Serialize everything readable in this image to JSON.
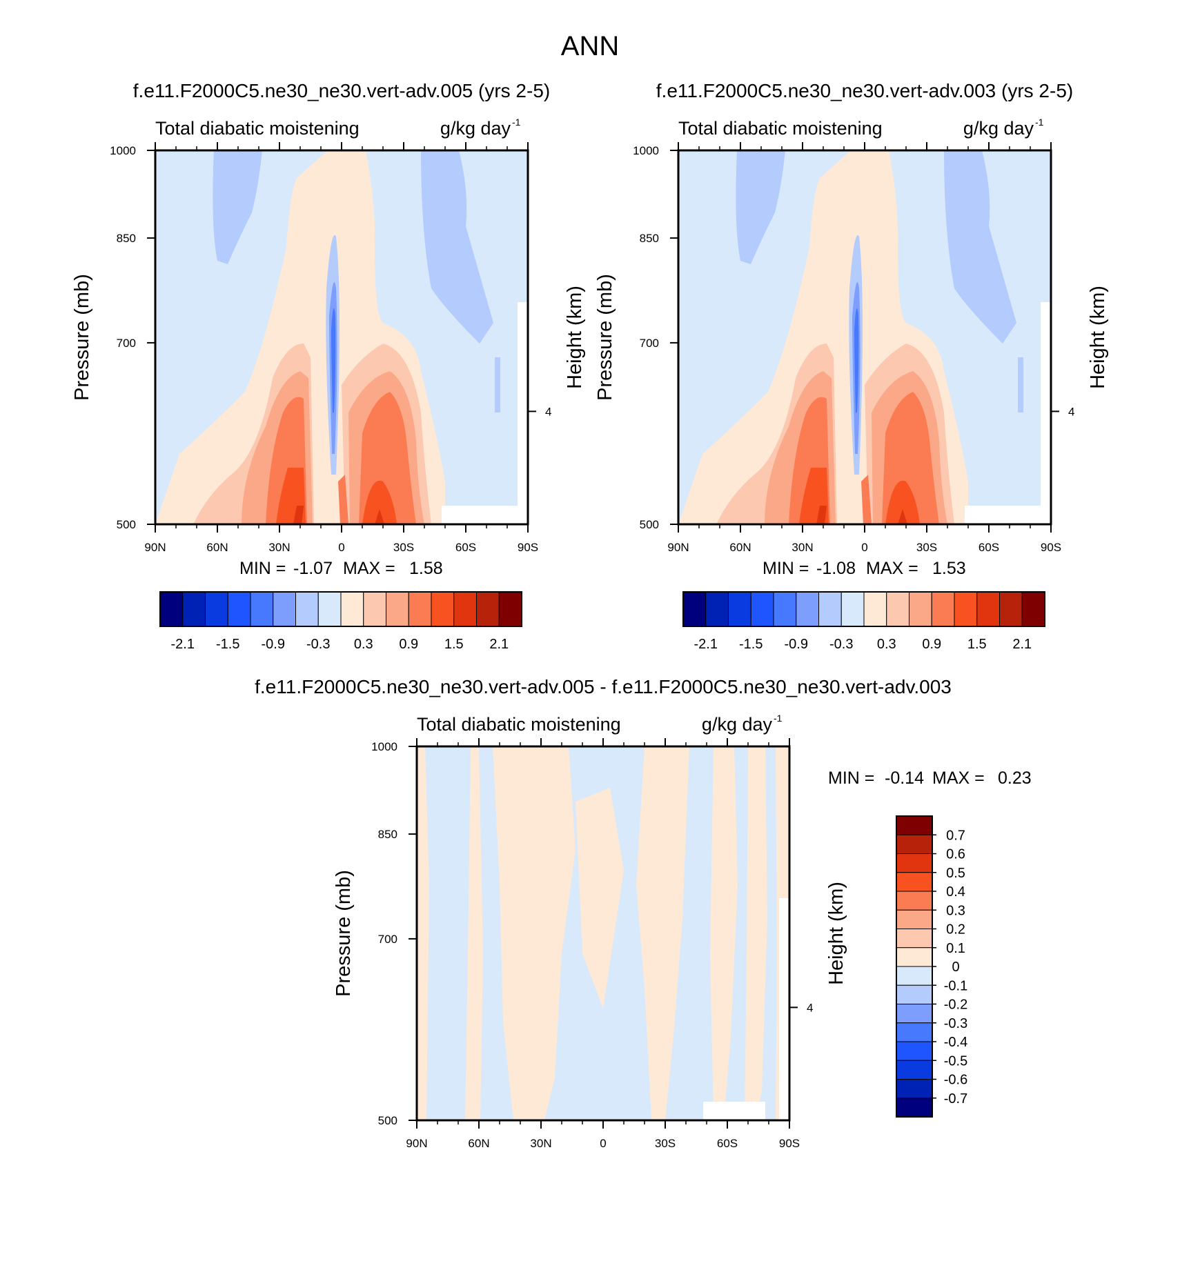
{
  "figure_title": "ANN",
  "chart_data": [
    {
      "type": "heatmap",
      "title": "f.e11.F2000C5.ne30_ne30.vert-adv.005 (yrs 2-5)",
      "subtitle_left": "Total diabatic moistening",
      "units": "g/kg day",
      "units_exp": "-1",
      "ylabel": "Pressure (mb)",
      "ylabel_right": "Height (km)",
      "y_ticks": [
        "500",
        "700",
        "850",
        "1000"
      ],
      "y_right_ticks": [
        "4"
      ],
      "x_ticks": [
        "90N",
        "60N",
        "30N",
        "0",
        "30S",
        "60S",
        "90S"
      ],
      "xlim": [
        90,
        -90
      ],
      "ylim": [
        1000,
        500
      ],
      "min_label": "MIN =",
      "min": "-1.07",
      "max_label": "MAX =",
      "max": "1.58",
      "colorbar_labels": [
        "-2.1",
        "-1.5",
        "-0.9",
        "-0.3",
        "0.3",
        "0.9",
        "1.5",
        "2.1"
      ]
    },
    {
      "type": "heatmap",
      "title": "f.e11.F2000C5.ne30_ne30.vert-adv.003 (yrs 2-5)",
      "subtitle_left": "Total diabatic moistening",
      "units": "g/kg day",
      "units_exp": "-1",
      "ylabel": "Pressure (mb)",
      "ylabel_right": "Height (km)",
      "y_ticks": [
        "500",
        "700",
        "850",
        "1000"
      ],
      "y_right_ticks": [
        "4"
      ],
      "x_ticks": [
        "90N",
        "60N",
        "30N",
        "0",
        "30S",
        "60S",
        "90S"
      ],
      "xlim": [
        90,
        -90
      ],
      "ylim": [
        1000,
        500
      ],
      "min_label": "MIN =",
      "min": "-1.08",
      "max_label": "MAX =",
      "max": "1.53",
      "colorbar_labels": [
        "-2.1",
        "-1.5",
        "-0.9",
        "-0.3",
        "0.3",
        "0.9",
        "1.5",
        "2.1"
      ]
    },
    {
      "type": "heatmap",
      "title": "f.e11.F2000C5.ne30_ne30.vert-adv.005 - f.e11.F2000C5.ne30_ne30.vert-adv.003",
      "subtitle_left": "Total diabatic moistening",
      "units": "g/kg day",
      "units_exp": "-1",
      "ylabel": "Pressure (mb)",
      "ylabel_right": "Height (km)",
      "y_ticks": [
        "500",
        "700",
        "850",
        "1000"
      ],
      "y_right_ticks": [
        "4"
      ],
      "x_ticks": [
        "90N",
        "60N",
        "30N",
        "0",
        "30S",
        "60S",
        "90S"
      ],
      "xlim": [
        90,
        -90
      ],
      "ylim": [
        1000,
        500
      ],
      "min_label": "MIN =",
      "min": "-0.14",
      "max_label": "MAX =",
      "max": "0.23",
      "colorbar_labels": [
        "0.7",
        "0.6",
        "0.5",
        "0.4",
        "0.3",
        "0.2",
        "0.1",
        "0",
        "-0.1",
        "-0.2",
        "-0.3",
        "-0.4",
        "-0.5",
        "-0.6",
        "-0.7"
      ]
    }
  ],
  "colors": {
    "palette_16": [
      "#00007f",
      "#0022b4",
      "#0a3be0",
      "#1f55ff",
      "#4779ff",
      "#7e9efd",
      "#b3cbfd",
      "#d8e9fb",
      "#fde9d6",
      "#fcc8b0",
      "#fba889",
      "#fb7c52",
      "#f7521f",
      "#e13510",
      "#b7220b",
      "#7f0000"
    ]
  }
}
